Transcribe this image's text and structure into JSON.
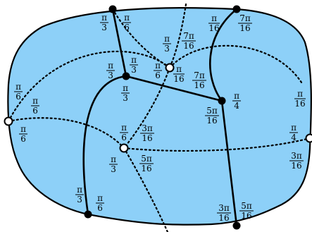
{
  "colors": {
    "region_fill": "#8dd0f8",
    "stroke": "#000000",
    "open_vertex_fill": "#ffffff",
    "filled_vertex_fill": "#000000"
  },
  "vertices": {
    "top_a": "filled",
    "top_b": "filled",
    "inner_upper_open": "open",
    "inner_mid_filled": "filled",
    "right_mid_filled": "filled",
    "left_edge_open": "open",
    "center_open": "open",
    "right_edge_open": "open",
    "bottom_left_filled": "filled",
    "bottom_right_filled": "filled"
  },
  "labels": [
    {
      "num": "π",
      "den": "3"
    },
    {
      "num": "π",
      "den": "6"
    },
    {
      "num": "π",
      "den": "16"
    },
    {
      "num": "7π",
      "den": "16"
    },
    {
      "num": "π",
      "den": "3"
    },
    {
      "num": "7π",
      "den": "16"
    },
    {
      "num": "π",
      "den": "3"
    },
    {
      "num": "π",
      "den": "3"
    },
    {
      "num": "π",
      "den": "6"
    },
    {
      "num": "π",
      "den": "16"
    },
    {
      "num": "7π",
      "den": "16"
    },
    {
      "num": "π",
      "den": "3"
    },
    {
      "num": "π",
      "den": "6"
    },
    {
      "num": "π",
      "den": "6"
    },
    {
      "num": "π",
      "den": "6"
    },
    {
      "num": "π",
      "den": "4"
    },
    {
      "num": "5π",
      "den": "16"
    },
    {
      "num": "π",
      "den": "16"
    },
    {
      "num": "π",
      "den": "6"
    },
    {
      "num": "3π",
      "den": "16"
    },
    {
      "num": "π",
      "den": "3"
    },
    {
      "num": "5π",
      "den": "16"
    },
    {
      "num": "π",
      "den": "4"
    },
    {
      "num": "3π",
      "den": "16"
    },
    {
      "num": "π",
      "den": "3"
    },
    {
      "num": "π",
      "den": "6"
    },
    {
      "num": "3π",
      "den": "16"
    },
    {
      "num": "5π",
      "den": "16"
    }
  ]
}
